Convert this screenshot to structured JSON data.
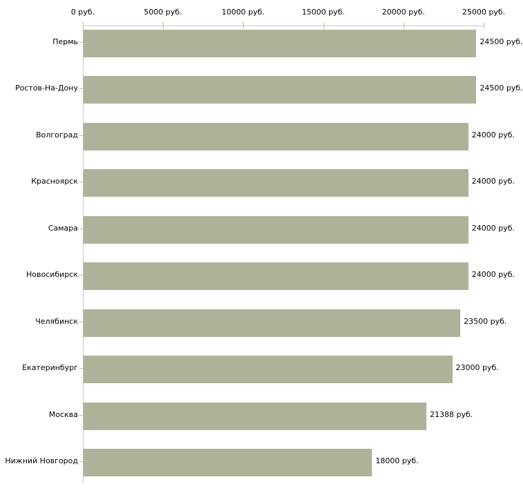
{
  "chart_data": {
    "type": "bar",
    "orientation": "horizontal",
    "unit": "руб.",
    "categories": [
      "Пермь",
      "Ростов-На-Дону",
      "Волгоград",
      "Красноярск",
      "Самара",
      "Новосибирск",
      "Челябинск",
      "Екатеринбург",
      "Москва",
      "Нижний Новгород"
    ],
    "values": [
      24500,
      24500,
      24000,
      24000,
      24000,
      24000,
      23500,
      23000,
      21388,
      18000
    ],
    "value_labels": [
      "24500 руб.",
      "24500 руб.",
      "24000 руб.",
      "24000 руб.",
      "24000 руб.",
      "24000 руб.",
      "23500 руб.",
      "23000 руб.",
      "21388 руб.",
      "18000 руб."
    ],
    "x_axis": {
      "position": "top",
      "xlim": [
        0,
        25000
      ],
      "ticks": [
        0,
        5000,
        10000,
        15000,
        20000,
        25000
      ],
      "tick_labels": [
        "0 руб.",
        "5000 руб.",
        "10000 руб.",
        "15000 руб.",
        "20000 руб.",
        "25000 руб."
      ]
    },
    "grid": false,
    "legend": false,
    "colors": {
      "bar": "#adb399",
      "axis_line": "#c6c6c6",
      "tick_mark": "#bdbd97",
      "text": "#000000",
      "background": "#ffffff"
    }
  }
}
